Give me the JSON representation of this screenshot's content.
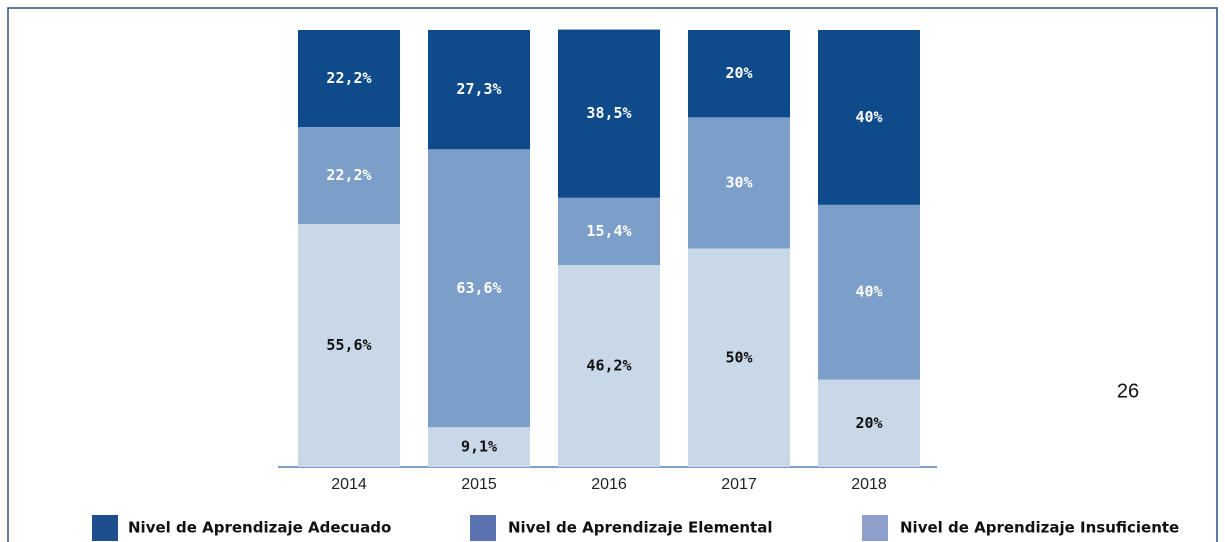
{
  "chart_data": {
    "type": "stacked_bar",
    "categories": [
      "2014",
      "2015",
      "2016",
      "2017",
      "2018"
    ],
    "ylim": [
      0,
      100
    ],
    "series": [
      {
        "name": "Nivel de Aprendizaje Insuficiente",
        "color": "#c9d8e8",
        "legend_color": "#8e9fcc",
        "label_color": "#111111",
        "values": [
          55.6,
          9.1,
          46.2,
          50,
          20
        ],
        "value_labels": [
          "55,6%",
          "9,1%",
          "46,2%",
          "50%",
          "20%"
        ]
      },
      {
        "name": "Nivel de Aprendizaje Elemental",
        "color": "#7c9fc9",
        "legend_color": "#5a72b0",
        "label_color": "#ffffff",
        "values": [
          22.2,
          63.6,
          15.4,
          30,
          40
        ],
        "value_labels": [
          "22,2%",
          "63,6%",
          "15,4%",
          "30%",
          "40%"
        ]
      },
      {
        "name": "Nivel de Aprendizaje Adecuado",
        "color": "#0f4a8b",
        "legend_color": "#1e4e8e",
        "label_color": "#ffffff",
        "values": [
          22.2,
          27.3,
          38.5,
          20,
          40
        ],
        "value_labels": [
          "22,2%",
          "27,3%",
          "38,5%",
          "20%",
          "40%"
        ]
      }
    ]
  },
  "page_number": "26"
}
